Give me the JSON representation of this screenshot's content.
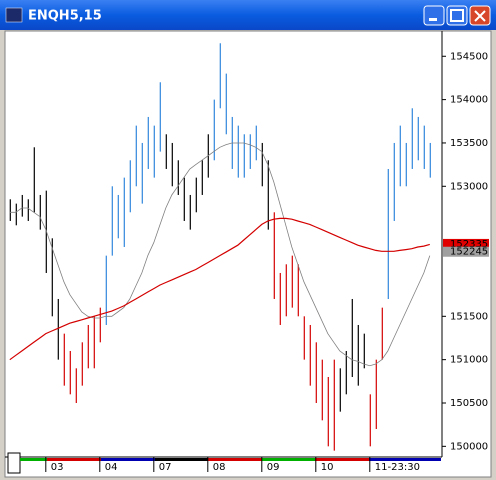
{
  "chart_data": {
    "type": "range-bar",
    "title": "ENQH5,15",
    "ylim": [
      149900,
      154780
    ],
    "yticks": [
      150000,
      150500,
      151000,
      151500,
      153000,
      153500,
      154000,
      154500
    ],
    "xlim": [
      -0.3,
      71.7
    ],
    "xticks": [
      {
        "value": 6,
        "label": "03"
      },
      {
        "value": 15,
        "label": "04"
      },
      {
        "value": 24,
        "label": "07"
      },
      {
        "value": 33,
        "label": "08"
      },
      {
        "value": 42,
        "label": "09"
      },
      {
        "value": 51,
        "label": "10"
      },
      {
        "value": 60,
        "label": "11-23:30"
      }
    ],
    "high": [
      152850,
      152800,
      152900,
      152850,
      153450,
      152900,
      152950,
      152400,
      151700,
      151300,
      151100,
      150900,
      151200,
      151400,
      151500,
      151600,
      152200,
      153000,
      152900,
      153100,
      153300,
      153700,
      153500,
      153800,
      153700,
      154200,
      153600,
      153500,
      153300,
      153100,
      152900,
      153100,
      153300,
      153600,
      154000,
      154650,
      154300,
      153800,
      153700,
      153600,
      153600,
      153700,
      153500,
      153300,
      152700,
      152000,
      152100,
      152200,
      152100,
      151500,
      151400,
      151200,
      151000,
      150800,
      151000,
      150900,
      151100,
      151700,
      151400,
      151300,
      150600,
      151000,
      151600,
      153200,
      153500,
      153700,
      153500,
      153900,
      153800,
      153700,
      153500
    ],
    "low": [
      152600,
      152550,
      152650,
      152600,
      152700,
      152500,
      152000,
      151500,
      151000,
      150700,
      150600,
      150500,
      150700,
      150900,
      150900,
      151200,
      151400,
      152200,
      152400,
      152300,
      152700,
      153000,
      152800,
      153200,
      153100,
      153400,
      153200,
      153000,
      152900,
      152600,
      152500,
      152700,
      152900,
      153100,
      153300,
      153900,
      153600,
      153200,
      153100,
      153100,
      153200,
      153300,
      153000,
      152500,
      151700,
      151400,
      151500,
      151600,
      151500,
      151000,
      150700,
      150500,
      150300,
      150000,
      149950,
      150400,
      150600,
      150800,
      150700,
      150900,
      150000,
      150200,
      151000,
      151700,
      152600,
      153000,
      153000,
      153200,
      153300,
      153200,
      153100
    ],
    "colors": [
      "#000000",
      "#000000",
      "#000000",
      "#000000",
      "#000000",
      "#000000",
      "#000000",
      "#000000",
      "#000000",
      "#d40000",
      "#d40000",
      "#d40000",
      "#d40000",
      "#d40000",
      "#d40000",
      "#d40000",
      "#2f86dc",
      "#2f86dc",
      "#2f86dc",
      "#2f86dc",
      "#2f86dc",
      "#2f86dc",
      "#2f86dc",
      "#2f86dc",
      "#2f86dc",
      "#2f86dc",
      "#000000",
      "#000000",
      "#000000",
      "#000000",
      "#000000",
      "#000000",
      "#000000",
      "#000000",
      "#2f86dc",
      "#2f86dc",
      "#2f86dc",
      "#2f86dc",
      "#2f86dc",
      "#2f86dc",
      "#2f86dc",
      "#2f86dc",
      "#000000",
      "#000000",
      "#d40000",
      "#d40000",
      "#d40000",
      "#d40000",
      "#d40000",
      "#d40000",
      "#d40000",
      "#d40000",
      "#d40000",
      "#d40000",
      "#d40000",
      "#000000",
      "#000000",
      "#000000",
      "#000000",
      "#000000",
      "#d40000",
      "#d40000",
      "#d40000",
      "#2f86dc",
      "#2f86dc",
      "#2f86dc",
      "#2f86dc",
      "#2f86dc",
      "#2f86dc",
      "#2f86dc",
      "#2f86dc"
    ],
    "moving_averages": [
      {
        "color": "#808080",
        "values": [
          152700,
          152700,
          152750,
          152750,
          152700,
          152650,
          152500,
          152300,
          152100,
          151900,
          151750,
          151650,
          151550,
          151500,
          151480,
          151480,
          151500,
          151500,
          151550,
          151600,
          151700,
          151850,
          152000,
          152200,
          152350,
          152550,
          152750,
          152900,
          153000,
          153100,
          153200,
          153250,
          153300,
          153350,
          153400,
          153450,
          153480,
          153500,
          153500,
          153500,
          153480,
          153450,
          153400,
          153250,
          153050,
          152800,
          152550,
          152300,
          152100,
          151900,
          151750,
          151600,
          151450,
          151300,
          151200,
          151100,
          151050,
          151000,
          150980,
          150950,
          150930,
          150950,
          151000,
          151100,
          151250,
          151400,
          151550,
          151700,
          151850,
          152000,
          152200
        ]
      },
      {
        "color": "#d40000",
        "values": [
          151000,
          151050,
          151100,
          151150,
          151200,
          151250,
          151300,
          151330,
          151360,
          151390,
          151420,
          151440,
          151460,
          151480,
          151500,
          151520,
          151540,
          151560,
          151590,
          151620,
          151660,
          151700,
          151740,
          151780,
          151820,
          151860,
          151890,
          151920,
          151950,
          151980,
          152010,
          152040,
          152080,
          152120,
          152160,
          152200,
          152240,
          152280,
          152320,
          152380,
          152440,
          152500,
          152560,
          152600,
          152620,
          152630,
          152630,
          152620,
          152600,
          152580,
          152560,
          152530,
          152500,
          152470,
          152440,
          152410,
          152380,
          152350,
          152320,
          152300,
          152280,
          152260,
          152250,
          152250,
          152250,
          152260,
          152270,
          152280,
          152300,
          152310,
          152330
        ]
      }
    ],
    "price_markers": [
      {
        "value": 152335,
        "color": "#e00000"
      },
      {
        "value": 152245,
        "color": "#a0a0a0"
      }
    ]
  }
}
